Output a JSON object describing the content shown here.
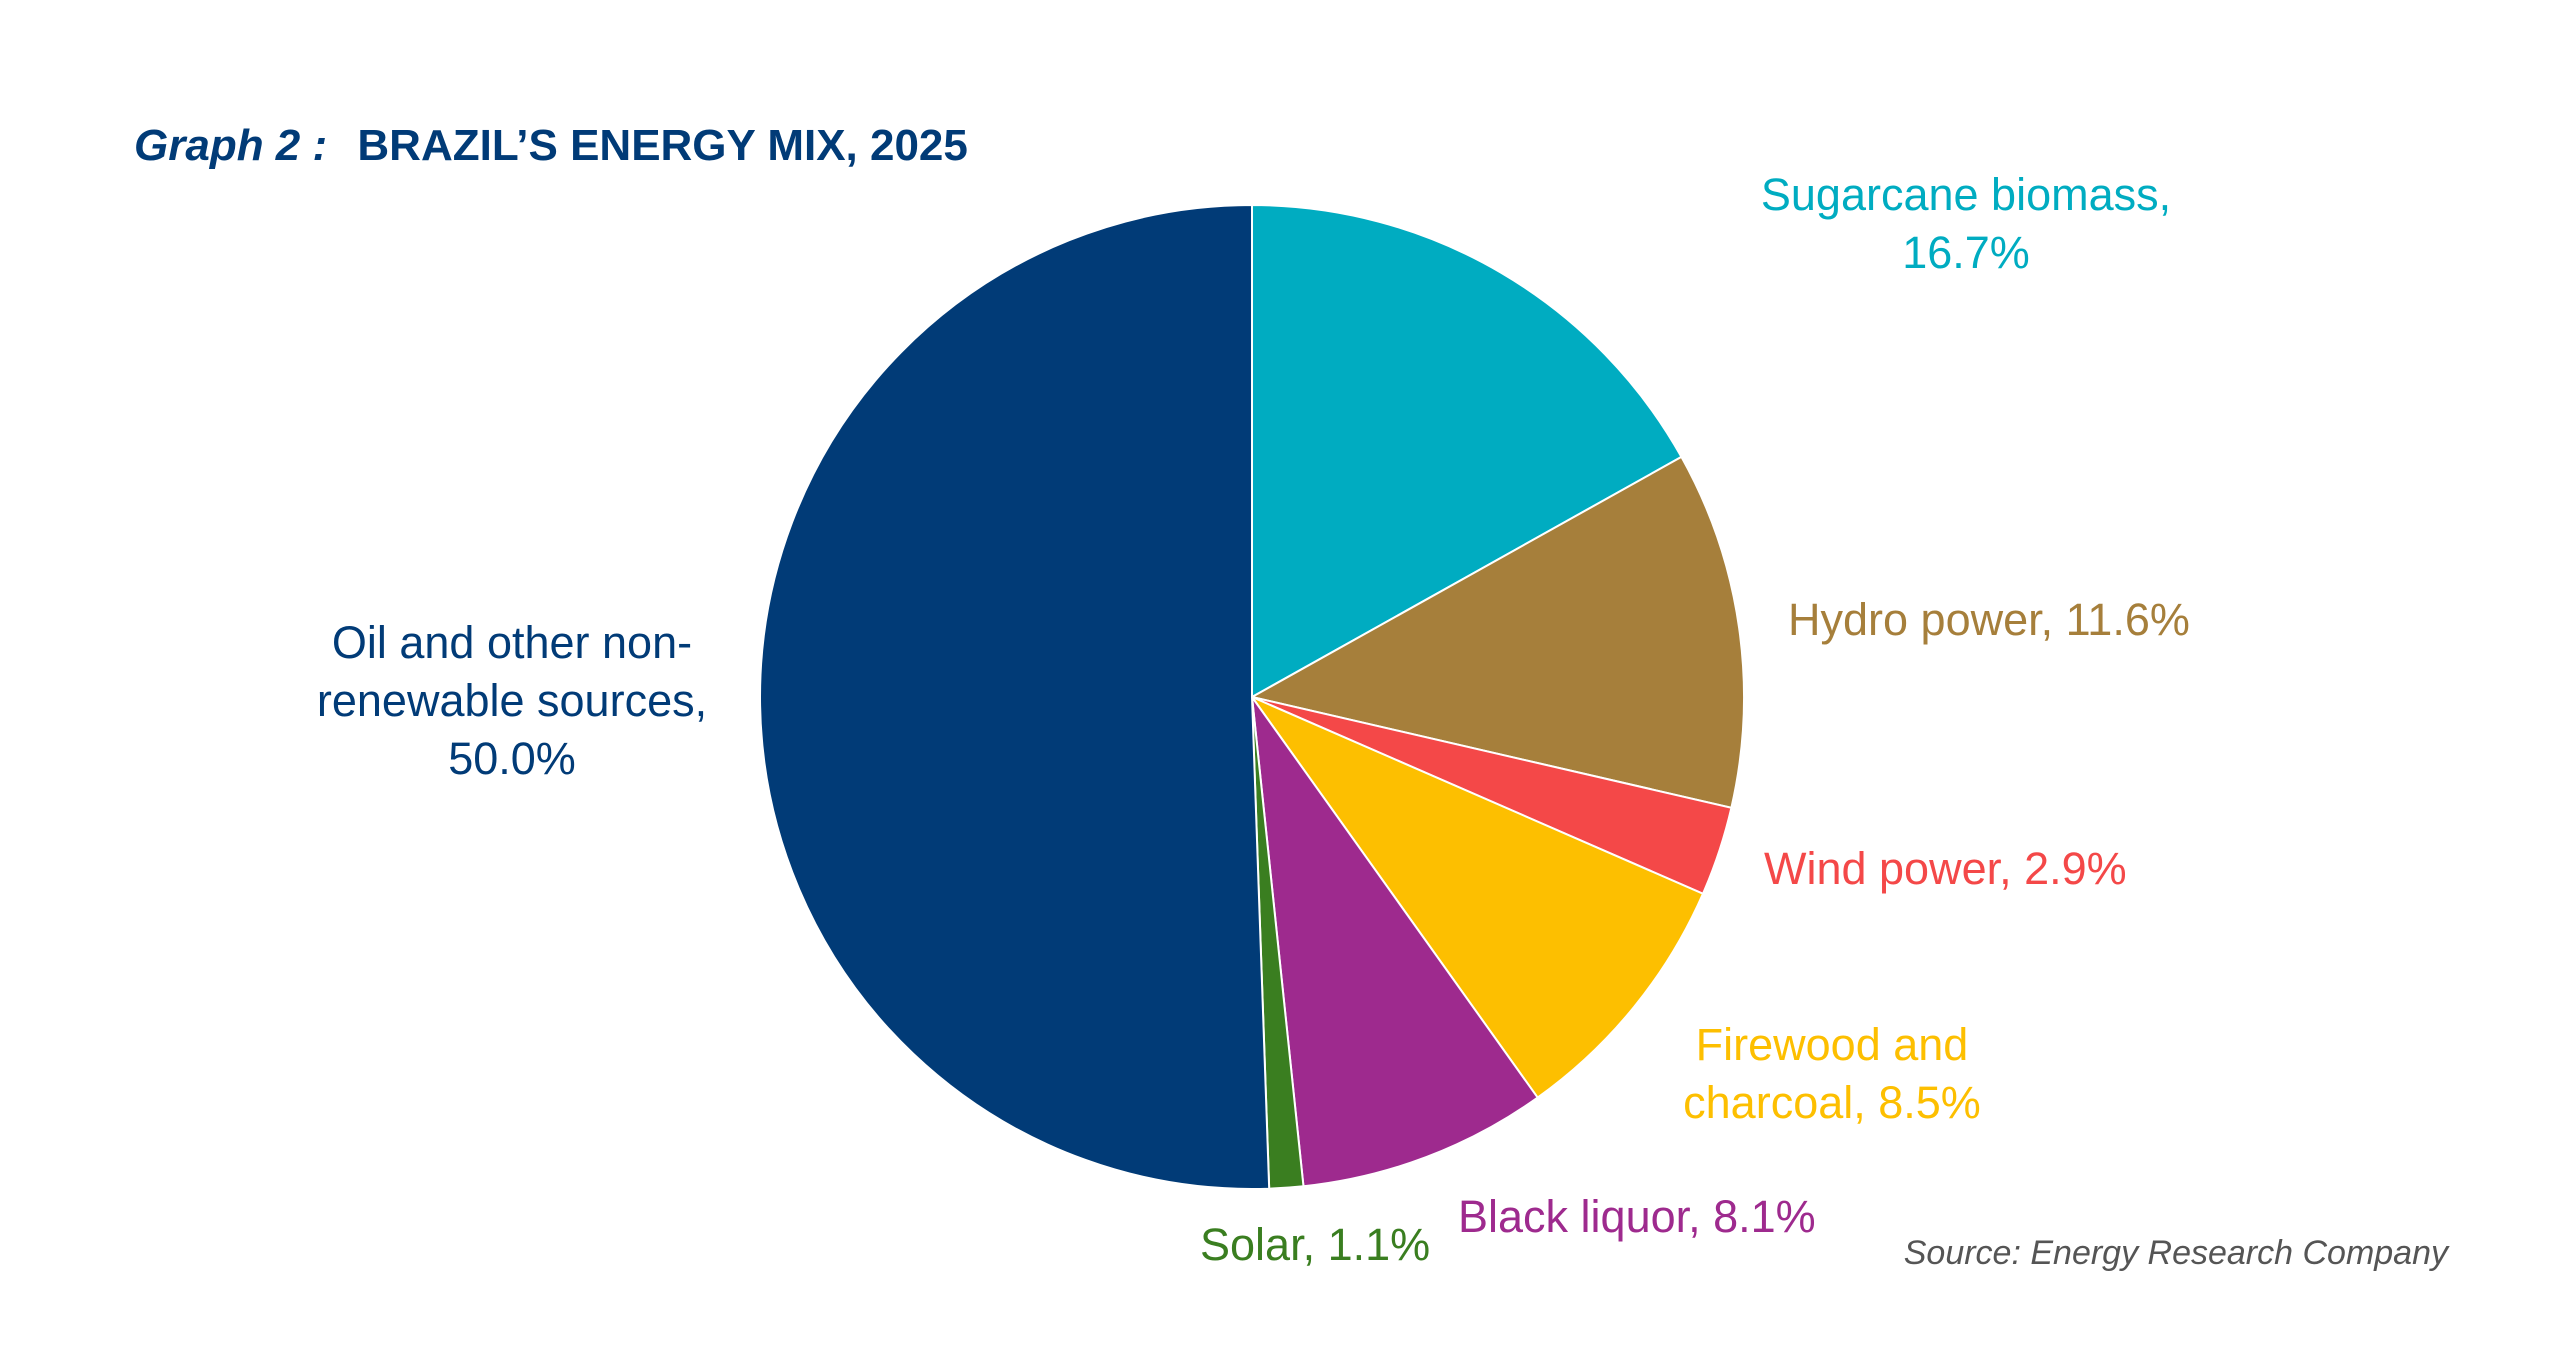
{
  "chart_data": {
    "type": "pie",
    "title_prefix": "Graph 2 :",
    "title": "BRAZIL’S ENERGY MIX, 2025",
    "source": "Source: Energy Research Company",
    "start_angle_deg": 0,
    "direction": "clockwise",
    "slices": [
      {
        "name": "Sugarcane biomass",
        "value": 16.7,
        "label_lines": [
          "Sugarcane biomass,",
          "16.7%"
        ],
        "color": "#00ACC1"
      },
      {
        "name": "Hydro power",
        "value": 11.6,
        "label_lines": [
          "Hydro power, 11.6%"
        ],
        "color": "#A67F3B"
      },
      {
        "name": "Wind power",
        "value": 2.9,
        "label_lines": [
          "Wind power, 2.9%"
        ],
        "color": "#F44848"
      },
      {
        "name": "Firewood and charcoal",
        "value": 8.5,
        "label_lines": [
          "Firewood and",
          "charcoal, 8.5%"
        ],
        "color": "#FDBF00"
      },
      {
        "name": "Black liquor",
        "value": 8.1,
        "label_lines": [
          "Black liquor, 8.1%"
        ],
        "color": "#9E2A8E"
      },
      {
        "name": "Solar",
        "value": 1.1,
        "label_lines": [
          "Solar, 1.1%"
        ],
        "color": "#3A7E20"
      },
      {
        "name": "Oil and other non-renewable sources",
        "value": 50.0,
        "label_lines": [
          "Oil and other non-",
          "renewable sources,",
          "50.0%"
        ],
        "color": "#013B77"
      }
    ],
    "title_color": "#013B77",
    "source_color": "#555555"
  }
}
